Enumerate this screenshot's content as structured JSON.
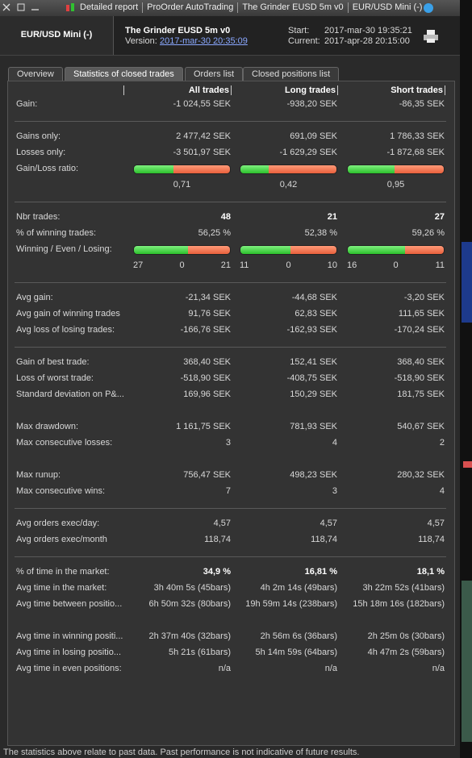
{
  "window_title": [
    "Detailed report",
    "ProOrder AutoTrading",
    "The Grinder EUSD 5m v0",
    "EUR/USD Mini (-)"
  ],
  "header": {
    "instrument": "EUR/USD Mini (-)",
    "system": "The Grinder EUSD 5m v0",
    "version_label": "Version:",
    "version": "2017-mar-30 20:35:09",
    "start_label": "Start:",
    "start": "2017-mar-30 19:35:21",
    "current_label": "Current:",
    "current": "2017-apr-28 20:15:00"
  },
  "tabs": [
    "Overview",
    "Statistics of closed trades",
    "Orders list",
    "Closed positions list"
  ],
  "active_tab": 1,
  "table": {
    "columns": [
      "All trades",
      "Long trades",
      "Short trades"
    ],
    "groups": [
      {
        "rule": true,
        "rows": [
          {
            "label": "Gain:",
            "values": [
              "-1 024,55 SEK",
              "-938,20 SEK",
              "-86,35 SEK"
            ]
          }
        ]
      },
      {
        "rule": true,
        "rows": [
          {
            "label": "Gains only:",
            "values": [
              "2 477,42 SEK",
              "691,09 SEK",
              "1 786,33 SEK"
            ]
          },
          {
            "label": "Losses only:",
            "values": [
              "-3 501,97 SEK",
              "-1 629,29 SEK",
              "-1 872,68 SEK"
            ]
          },
          {
            "label": "Gain/Loss ratio:",
            "type": "ratio_bar",
            "values": [
              {
                "value": 0.71,
                "label": "0,71"
              },
              {
                "value": 0.42,
                "label": "0,42"
              },
              {
                "value": 0.95,
                "label": "0,95"
              }
            ]
          }
        ]
      },
      {
        "rule": true,
        "rows": [
          {
            "label": "Nbr trades:",
            "bold": true,
            "values": [
              48,
              21,
              27
            ]
          },
          {
            "label": "% of winning trades:",
            "values": [
              "56,25 %",
              "52,38 %",
              "59,26 %"
            ]
          },
          {
            "label": "Winning / Even / Losing:",
            "type": "wel_bar",
            "values": [
              [
                27,
                0,
                21
              ],
              [
                11,
                0,
                10
              ],
              [
                16,
                0,
                11
              ]
            ]
          }
        ]
      },
      {
        "rule": true,
        "rows": [
          {
            "label": "Avg gain:",
            "values": [
              "-21,34 SEK",
              "-44,68 SEK",
              "-3,20 SEK"
            ]
          },
          {
            "label": "Avg gain of winning trades",
            "values": [
              "91,76 SEK",
              "62,83 SEK",
              "111,65 SEK"
            ]
          },
          {
            "label": "Avg loss of losing trades:",
            "values": [
              "-166,76 SEK",
              "-162,93 SEK",
              "-170,24 SEK"
            ]
          }
        ]
      },
      {
        "rule": false,
        "rows": [
          {
            "label": "Gain of best trade:",
            "values": [
              "368,40 SEK",
              "152,41 SEK",
              "368,40 SEK"
            ]
          },
          {
            "label": "Loss of worst trade:",
            "values": [
              "-518,90 SEK",
              "-408,75 SEK",
              "-518,90 SEK"
            ]
          },
          {
            "label": "Standard deviation on P&...",
            "values": [
              "169,96 SEK",
              "150,29 SEK",
              "181,75 SEK"
            ]
          }
        ]
      },
      {
        "rule": false,
        "rows": [
          {
            "label": "Max drawdown:",
            "values": [
              "1 161,75 SEK",
              "781,93 SEK",
              "540,67 SEK"
            ]
          },
          {
            "label": "Max consecutive losses:",
            "values": [
              3,
              4,
              2
            ]
          }
        ]
      },
      {
        "rule": true,
        "rows": [
          {
            "label": "Max runup:",
            "values": [
              "756,47 SEK",
              "498,23 SEK",
              "280,32 SEK"
            ]
          },
          {
            "label": "Max consecutive wins:",
            "values": [
              7,
              3,
              4
            ]
          }
        ]
      },
      {
        "rule": true,
        "rows": [
          {
            "label": "Avg orders exec/day:",
            "values": [
              "4,57",
              "4,57",
              "4,57"
            ]
          },
          {
            "label": "Avg orders exec/month",
            "values": [
              "118,74",
              "118,74",
              "118,74"
            ]
          }
        ]
      },
      {
        "rule": false,
        "rows": [
          {
            "label": "% of time in the market:",
            "bold": true,
            "values": [
              "34,9 %",
              "16,81 %",
              "18,1 %"
            ]
          },
          {
            "label": "Avg time in the market:",
            "values": [
              "3h 40m 5s (45bars)",
              "4h 2m 14s (49bars)",
              "3h 22m 52s (41bars)"
            ]
          },
          {
            "label": "Avg time between positio...",
            "values": [
              "6h 50m 32s (80bars)",
              "19h 59m 14s (238bars)",
              "15h 18m 16s (182bars)"
            ]
          }
        ]
      },
      {
        "rule": false,
        "rows": [
          {
            "label": "Avg time in winning positi...",
            "values": [
              "2h 37m 40s (32bars)",
              "2h 56m 6s (36bars)",
              "2h 25m 0s (30bars)"
            ]
          },
          {
            "label": "Avg time in losing positio...",
            "values": [
              "5h 21s (61bars)",
              "5h 14m 59s (64bars)",
              "4h 47m 2s (59bars)"
            ]
          },
          {
            "label": "Avg time in even positions:",
            "values": [
              "n/a",
              "n/a",
              "n/a"
            ]
          }
        ]
      }
    ]
  },
  "footer": "The statistics above relate to past data. Past performance is not indicative of future results."
}
